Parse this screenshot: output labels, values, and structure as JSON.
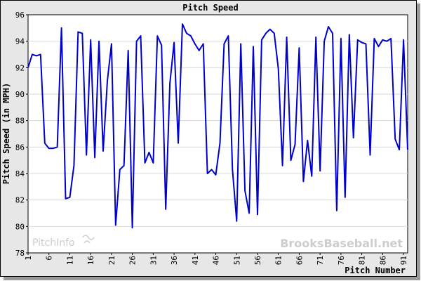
{
  "chart_data": {
    "type": "line",
    "title": "Pitch Speed",
    "xlabel": "Pitch Number",
    "ylabel": "Pitch Speed (in MPH)",
    "xlim": [
      1,
      92
    ],
    "ylim": [
      78,
      96
    ],
    "x_ticks": [
      1,
      6,
      11,
      16,
      21,
      26,
      31,
      36,
      41,
      46,
      51,
      56,
      61,
      66,
      71,
      76,
      81,
      86,
      91
    ],
    "y_ticks": [
      78,
      80,
      82,
      84,
      86,
      88,
      90,
      92,
      94,
      96
    ],
    "grid": "horizontal",
    "series": [
      {
        "color": "#0000cc",
        "x": [
          1,
          2,
          3,
          4,
          5,
          6,
          7,
          8,
          9,
          10,
          11,
          12,
          13,
          14,
          15,
          16,
          17,
          18,
          19,
          20,
          21,
          22,
          23,
          24,
          25,
          26,
          27,
          28,
          29,
          30,
          31,
          32,
          33,
          34,
          35,
          36,
          37,
          38,
          39,
          40,
          41,
          42,
          43,
          44,
          45,
          46,
          47,
          48,
          49,
          50,
          51,
          52,
          53,
          54,
          55,
          56,
          57,
          58,
          59,
          60,
          61,
          62,
          63,
          64,
          65,
          66,
          67,
          68,
          69,
          70,
          71,
          72,
          73,
          74,
          75,
          76,
          77,
          78,
          79,
          80,
          81,
          82,
          83,
          84,
          85,
          86,
          87,
          88,
          89,
          90,
          91,
          92
        ],
        "values": [
          92.0,
          93.0,
          92.9,
          93.0,
          86.3,
          85.9,
          85.9,
          86.0,
          95.0,
          82.1,
          82.2,
          84.6,
          94.7,
          94.6,
          85.4,
          94.1,
          85.2,
          94.0,
          85.7,
          91.0,
          93.8,
          80.1,
          84.3,
          84.6,
          93.3,
          79.9,
          94.0,
          94.4,
          84.8,
          85.6,
          84.8,
          94.4,
          93.7,
          81.3,
          90.8,
          93.9,
          86.3,
          95.3,
          94.6,
          94.4,
          93.8,
          93.3,
          93.8,
          84.0,
          84.3,
          83.9,
          86.3,
          93.8,
          94.4,
          84.3,
          80.4,
          93.8,
          82.7,
          81.0,
          93.6,
          80.9,
          94.1,
          94.6,
          94.9,
          94.6,
          91.9,
          84.6,
          94.3,
          85.0,
          86.2,
          93.5,
          83.4,
          86.5,
          83.8,
          94.3,
          84.2,
          94.0,
          95.1,
          94.6,
          81.2,
          94.2,
          82.2,
          94.5,
          86.7,
          94.1,
          93.9,
          93.8,
          85.4,
          94.2,
          93.6,
          94.1,
          94.0,
          94.2,
          86.6,
          85.8,
          94.1,
          85.8
        ]
      }
    ],
    "watermark_left": "PitchInfo",
    "watermark_right": "BrooksBaseball.net"
  }
}
